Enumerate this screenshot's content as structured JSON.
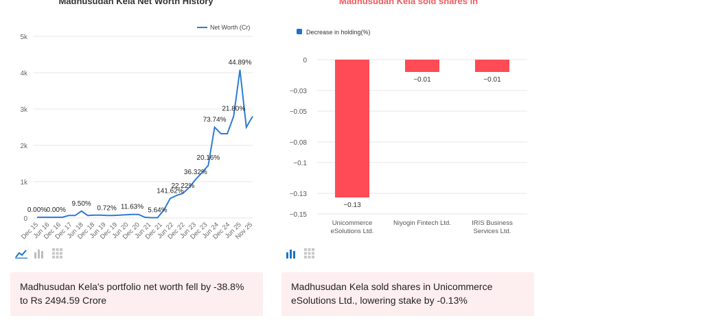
{
  "left_panel": {
    "title": "Madhusudan Kela Net Worth History",
    "summary": "Madhusudan Kela's portfolio net worth fell by -38.8% to Rs 2494.59 Crore"
  },
  "right_panel": {
    "title": "Madhusudan Kela sold shares in",
    "summary": "Madhusudan Kela sold shares in Unicommerce eSolutions Ltd., lowering stake by -0.13%"
  },
  "toolbar_icons": [
    "line-chart-icon",
    "bar-chart-icon",
    "table-grid-icon"
  ],
  "colors": {
    "line": "#2b7bd6",
    "bar": "#ff4b55",
    "accent_red": "#f05a5e",
    "summary_bg": "#fdeef0",
    "active_icon": "#1a73c9",
    "inactive_icon": "#bdbdbd"
  },
  "chart_data": [
    {
      "type": "line",
      "title": "Madhusudan Kela Net Worth History",
      "legend": [
        "Net Worth (Cr)"
      ],
      "legend_position": "top-right",
      "ylim": [
        0,
        5000
      ],
      "y_ticks": [
        "0",
        "1k",
        "2k",
        "3k",
        "4k",
        "5k"
      ],
      "x_tick_labels": [
        "Dec 15",
        "Jun 16",
        "Dec 16",
        "Dec 17",
        "Jun 18",
        "Dec 18",
        "Jun 19",
        "Dec 19",
        "Jun 20",
        "Dec 20",
        "Jun 21",
        "Dec 21",
        "Jun 22",
        "Dec 22",
        "Jun 23",
        "Dec 23",
        "Jun 24",
        "Dec 24",
        "Jun 25",
        "Nov 25"
      ],
      "series": [
        {
          "name": "Net Worth (Cr)",
          "values": [
            20,
            20,
            20,
            20,
            20,
            70,
            70,
            190,
            70,
            80,
            80,
            70,
            70,
            80,
            90,
            100,
            100,
            20,
            10,
            10,
            220,
            540,
            620,
            680,
            840,
            1060,
            1250,
            1450,
            2500,
            2320,
            2320,
            2800,
            4080,
            2500,
            2800
          ]
        }
      ],
      "point_labels": [
        {
          "index": 0,
          "text": "0.00%"
        },
        {
          "index": 3,
          "text": "0.00%"
        },
        {
          "index": 7,
          "text": "9.50%"
        },
        {
          "index": 11,
          "text": "0.72%"
        },
        {
          "index": 15,
          "text": "11.63%"
        },
        {
          "index": 19,
          "text": "5.64%"
        },
        {
          "index": 21,
          "text": "141.62%"
        },
        {
          "index": 23,
          "text": "22.22%"
        },
        {
          "index": 25,
          "text": "36.32%"
        },
        {
          "index": 27,
          "text": "20.16%"
        },
        {
          "index": 28,
          "text": "73.74%"
        },
        {
          "index": 31,
          "text": "21.80%"
        },
        {
          "index": 32,
          "text": "44.89%"
        }
      ]
    },
    {
      "type": "bar",
      "title": "Madhusudan Kela sold shares in",
      "legend": [
        "Decrease in holding(%)"
      ],
      "legend_position": "top-left",
      "ylim": [
        -0.15,
        0
      ],
      "y_ticks": [
        0,
        -0.03,
        -0.05,
        -0.08,
        -0.1,
        -0.13,
        -0.15
      ],
      "y_tick_labels": [
        "0",
        "−0.03",
        "−0.05",
        "−0.08",
        "−0.1",
        "−0.13",
        "−0.15"
      ],
      "categories": [
        [
          "Unicommerce",
          "eSolutions Ltd."
        ],
        [
          "Niyogin Fintech Ltd."
        ],
        [
          "IRIS Business",
          "Services Ltd."
        ]
      ],
      "values": [
        -0.134,
        -0.012,
        -0.012
      ],
      "value_labels": [
        "−0.13",
        "−0.01",
        "−0.01"
      ]
    }
  ]
}
